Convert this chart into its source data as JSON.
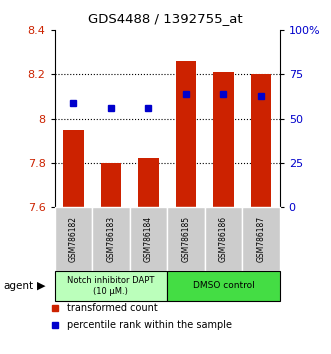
{
  "title": "GDS4488 / 1392755_at",
  "categories": [
    "GSM786182",
    "GSM786183",
    "GSM786184",
    "GSM786185",
    "GSM786186",
    "GSM786187"
  ],
  "bar_values": [
    7.95,
    7.8,
    7.82,
    8.26,
    8.21,
    8.2
  ],
  "bar_bottom": 7.6,
  "percentile_values": [
    8.07,
    8.05,
    8.05,
    8.11,
    8.11,
    8.1
  ],
  "ylim_left": [
    7.6,
    8.4
  ],
  "ylim_right": [
    0,
    100
  ],
  "yticks_left": [
    7.6,
    7.8,
    8.0,
    8.2,
    8.4
  ],
  "ytick_labels_left": [
    "7.6",
    "7.8",
    "8",
    "8.2",
    "8.4"
  ],
  "yticks_right": [
    0,
    25,
    50,
    75,
    100
  ],
  "ytick_labels_right": [
    "0",
    "25",
    "50",
    "75",
    "100%"
  ],
  "bar_color": "#CC2200",
  "percentile_color": "#0000CC",
  "group1_label": "Notch inhibitor DAPT\n(10 μM.)",
  "group2_label": "DMSO control",
  "group1_color": "#BBFFBB",
  "group2_color": "#44DD44",
  "agent_label": "agent",
  "legend1": "transformed count",
  "legend2": "percentile rank within the sample",
  "grid_lines": [
    7.8,
    8.0,
    8.2
  ],
  "tick_label_color_left": "#CC2200",
  "tick_label_color_right": "#0000CC",
  "bar_width": 0.55,
  "label_box_color": "#CCCCCC"
}
